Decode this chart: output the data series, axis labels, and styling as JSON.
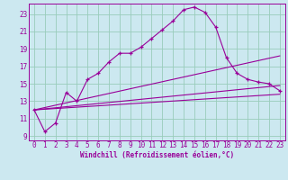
{
  "xlabel": "Windchill (Refroidissement éolien,°C)",
  "bg_color": "#cce8f0",
  "line_color": "#990099",
  "grid_color": "#99ccbb",
  "xlim": [
    -0.5,
    23.5
  ],
  "ylim": [
    8.5,
    24.2
  ],
  "xticks": [
    0,
    1,
    2,
    3,
    4,
    5,
    6,
    7,
    8,
    9,
    10,
    11,
    12,
    13,
    14,
    15,
    16,
    17,
    18,
    19,
    20,
    21,
    22,
    23
  ],
  "yticks": [
    9,
    11,
    13,
    15,
    17,
    19,
    21,
    23
  ],
  "main_x": [
    0,
    1,
    2,
    3,
    4,
    5,
    6,
    7,
    8,
    9,
    10,
    11,
    12,
    13,
    14,
    15,
    16,
    17,
    18,
    19,
    20,
    21,
    22,
    23
  ],
  "main_y": [
    12.0,
    9.5,
    10.5,
    14.0,
    13.0,
    15.5,
    16.2,
    17.5,
    18.5,
    18.5,
    19.2,
    20.2,
    21.2,
    22.2,
    23.5,
    23.8,
    23.2,
    21.5,
    18.0,
    16.2,
    15.5,
    15.2,
    15.0,
    14.2
  ],
  "line1_x": [
    0,
    23
  ],
  "line1_y": [
    12.0,
    18.2
  ],
  "line2_x": [
    0,
    23
  ],
  "line2_y": [
    12.0,
    14.8
  ],
  "line3_x": [
    0,
    23
  ],
  "line3_y": [
    12.0,
    13.8
  ],
  "xlabel_fontsize": 5.5,
  "tick_fontsize": 5.5
}
